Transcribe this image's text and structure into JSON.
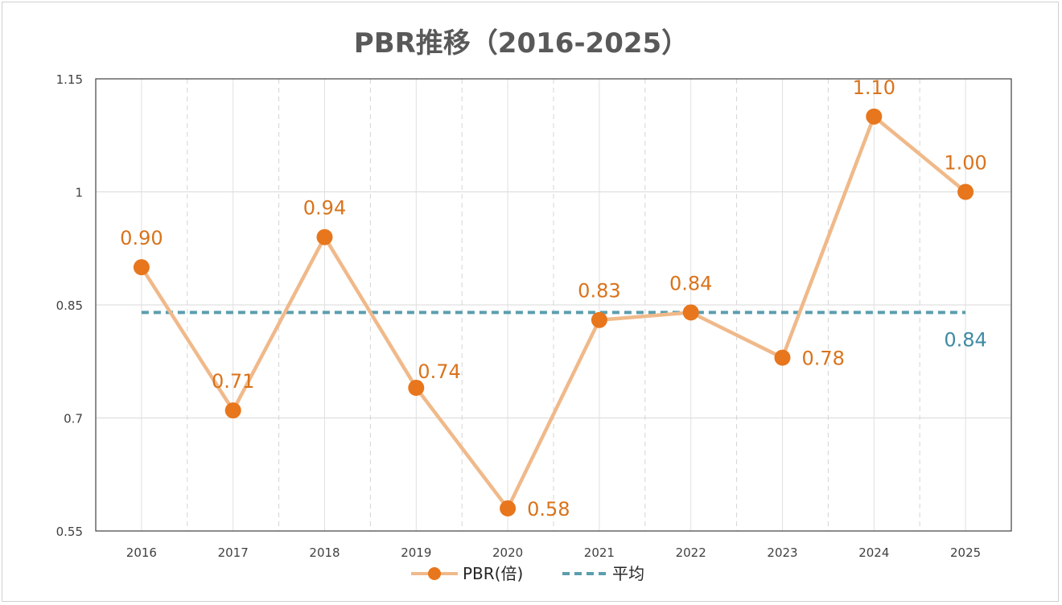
{
  "chart_data": {
    "type": "line",
    "title": "PBR推移（2016-2025）",
    "categories": [
      "2016",
      "2017",
      "2018",
      "2019",
      "2020",
      "2021",
      "2022",
      "2023",
      "2024",
      "2025"
    ],
    "series": [
      {
        "name": "PBR(倍)",
        "values": [
          0.9,
          0.71,
          0.94,
          0.74,
          0.58,
          0.83,
          0.84,
          0.78,
          1.1,
          1.0
        ],
        "labels": [
          "0.90",
          "0.71",
          "0.94",
          "0.74",
          "0.58",
          "0.83",
          "0.84",
          "0.78",
          "1.10",
          "1.00"
        ],
        "line_color": "#f0b98a",
        "marker_color": "#e8761c"
      },
      {
        "name": "平均",
        "value": 0.84,
        "label": "0.84",
        "style": "dashed",
        "color": "#5b9eae"
      }
    ],
    "yticks": [
      "0.55",
      "0.7",
      "0.85",
      "1",
      "1.15"
    ],
    "ylim": [
      0.55,
      1.15
    ],
    "xlabel": "",
    "ylabel": "",
    "grid": true,
    "legend_position": "bottom"
  }
}
